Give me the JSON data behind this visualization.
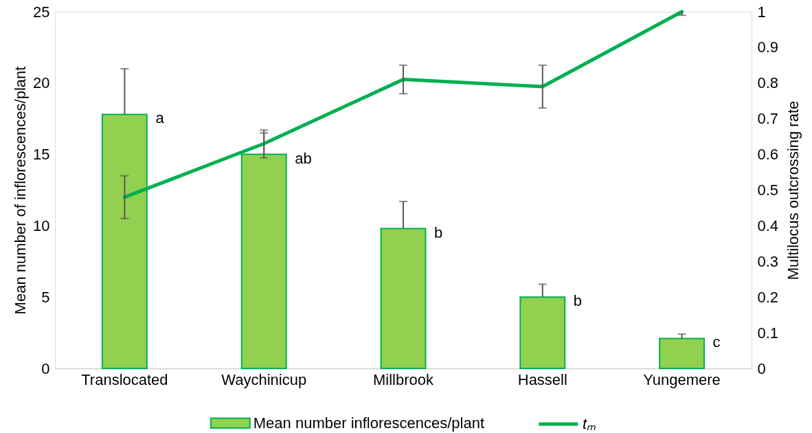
{
  "chart_data": {
    "type": "bar",
    "categories": [
      "Translocated",
      "Waychinicup",
      "Millbrook",
      "Hassell",
      "Yungemere"
    ],
    "ylabel": "Mean number of inflorescences/plant",
    "y2label": "Multilocus outcrossing rate",
    "ylim": [
      0,
      25
    ],
    "yticks": [
      0,
      5,
      10,
      15,
      20,
      25
    ],
    "y2lim": [
      0,
      1
    ],
    "y2ticks": [
      0,
      0.1,
      0.2,
      0.3,
      0.4,
      0.5,
      0.6,
      0.7,
      0.8,
      0.9,
      1
    ],
    "legend": "bottom",
    "series": [
      {
        "name": "Mean number inflorescences/plant",
        "color": "#92d050",
        "values": [
          17.8,
          15.0,
          9.8,
          5.0,
          2.1
        ],
        "errors": [
          [
            17.8,
            21.0
          ],
          [
            15.0,
            16.7
          ],
          [
            9.8,
            11.7
          ],
          [
            5.0,
            5.9
          ],
          [
            2.1,
            2.4
          ]
        ]
      },
      {
        "name": "tₘ",
        "type": "line",
        "axis": "y2",
        "color": "#00b050",
        "values": [
          0.48,
          0.63,
          0.81,
          0.79,
          1.0
        ],
        "errors": [
          0.06,
          [
            0.59,
            0.66
          ],
          0.04,
          0.06,
          [
            0.99,
            1.0
          ]
        ]
      }
    ],
    "annotations": [
      "a",
      "ab",
      "b",
      "b",
      "c"
    ]
  }
}
